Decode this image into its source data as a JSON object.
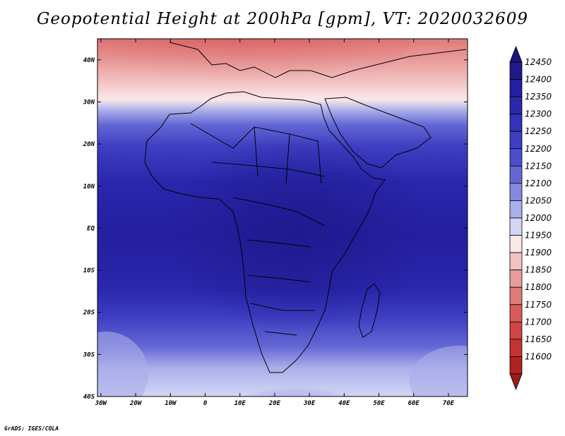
{
  "title": "Geopotential Height at 200hPa [gpm], VT: 2020032609",
  "credit": "GrADS: IGES/COLA",
  "map": {
    "lat_ticks": [
      {
        "value": 40,
        "label": "40N"
      },
      {
        "value": 30,
        "label": "30N"
      },
      {
        "value": 20,
        "label": "20N"
      },
      {
        "value": 10,
        "label": "10N"
      },
      {
        "value": 0,
        "label": "EQ"
      },
      {
        "value": -10,
        "label": "10S"
      },
      {
        "value": -20,
        "label": "20S"
      },
      {
        "value": -30,
        "label": "30S"
      },
      {
        "value": -40,
        "label": "40S"
      }
    ],
    "lon_ticks": [
      {
        "value": -30,
        "label": "30W"
      },
      {
        "value": -20,
        "label": "20W"
      },
      {
        "value": -10,
        "label": "10W"
      },
      {
        "value": 0,
        "label": "0"
      },
      {
        "value": 10,
        "label": "10E"
      },
      {
        "value": 20,
        "label": "20E"
      },
      {
        "value": 30,
        "label": "30E"
      },
      {
        "value": 40,
        "label": "40E"
      },
      {
        "value": 50,
        "label": "50E"
      },
      {
        "value": 60,
        "label": "60E"
      },
      {
        "value": 70,
        "label": "70E"
      }
    ]
  },
  "colorbar": {
    "levels": [
      {
        "value": "12450",
        "color": "#1e1a8c"
      },
      {
        "value": "12400",
        "color": "#241fa0"
      },
      {
        "value": "12350",
        "color": "#2a27ad"
      },
      {
        "value": "12300",
        "color": "#3332b8"
      },
      {
        "value": "12250",
        "color": "#3e3fc2"
      },
      {
        "value": "12200",
        "color": "#4c4fcb"
      },
      {
        "value": "12150",
        "color": "#6367d4"
      },
      {
        "value": "12100",
        "color": "#8488de"
      },
      {
        "value": "12050",
        "color": "#aaaeea"
      },
      {
        "value": "12000",
        "color": "#d4d6f4"
      },
      {
        "value": "11950",
        "color": "#fbe8e8"
      },
      {
        "value": "11900",
        "color": "#f2c2c2"
      },
      {
        "value": "11850",
        "color": "#e99c9c"
      },
      {
        "value": "11800",
        "color": "#e07a7a"
      },
      {
        "value": "11750",
        "color": "#d85a5a"
      },
      {
        "value": "11700",
        "color": "#d04444"
      },
      {
        "value": "11650",
        "color": "#c43232"
      },
      {
        "value": "11600",
        "color": "#b02222"
      }
    ],
    "top_triangle_color": "#1a1578",
    "bottom_triangle_color": "#9c1a1a"
  }
}
